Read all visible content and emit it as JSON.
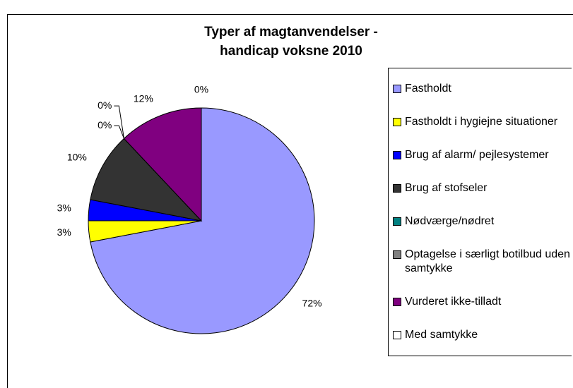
{
  "chart_data": {
    "type": "pie",
    "title": [
      "Typer af magtanvendelser -",
      "handicap voksne 2010"
    ],
    "categories": [
      "Fastholdt",
      "Fastholdt i hygiejne situationer",
      "Brug af alarm/ pejlesystemer",
      "Brug af stofseler",
      "Nødværge/nødret",
      "Optagelse i særligt botilbud uden samtykke",
      "Vurderet ikke-tilladt",
      "Med samtykke"
    ],
    "values": [
      72,
      3,
      3,
      10,
      0,
      0,
      12,
      0
    ],
    "value_labels": [
      "72%",
      "3%",
      "3%",
      "10%",
      "0%",
      "0%",
      "12%",
      "0%"
    ],
    "colors": [
      "#9999ff",
      "#ffff00",
      "#0000ff",
      "#333333",
      "#008080",
      "#808080",
      "#800080",
      "#ffffff"
    ],
    "legend": "right"
  }
}
